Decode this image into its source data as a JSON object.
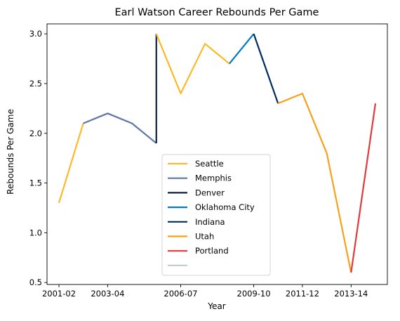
{
  "chart_data": {
    "type": "line",
    "title": "Earl Watson Career Rebounds Per Game",
    "xlabel": "Year",
    "ylabel": "Rebounds Per Game",
    "ylim": [
      0.48,
      3.1
    ],
    "x_categories": [
      "2001-02",
      "2002-03",
      "2003-04",
      "2004-05",
      "2005-06",
      "2006-07",
      "2007-08",
      "2008-09",
      "2009-10",
      "2010-11",
      "2011-12",
      "2012-13",
      "2013-14",
      "2014-15"
    ],
    "xticks": [
      "2001-02",
      "2003-04",
      "2006-07",
      "2009-10",
      "2011-12",
      "2013-14"
    ],
    "yticks": [
      "0.5",
      "1.0",
      "1.5",
      "2.0",
      "2.5",
      "3.0"
    ],
    "grid": false,
    "legend": "lower-center",
    "series": [
      {
        "name": "Seattle",
        "color": "#FDB927",
        "points": [
          [
            0,
            1.3
          ],
          [
            1,
            2.1
          ]
        ]
      },
      {
        "name": "Memphis",
        "color": "#5D76A9",
        "points": [
          [
            1,
            2.1
          ],
          [
            2,
            2.2
          ],
          [
            3,
            2.1
          ],
          [
            4,
            1.9
          ]
        ]
      },
      {
        "name": "Denver",
        "color": "#0E2240",
        "points": [
          [
            4,
            1.9
          ],
          [
            4,
            3.0
          ]
        ]
      },
      {
        "name": "Seattle",
        "color": "#FDB927",
        "points": [
          [
            4,
            3.0
          ],
          [
            5,
            2.4
          ],
          [
            6,
            2.9
          ],
          [
            7,
            2.7
          ]
        ],
        "legend": false
      },
      {
        "name": "Oklahoma City",
        "color": "#007AC1",
        "points": [
          [
            7,
            2.7
          ],
          [
            8,
            3.0
          ]
        ]
      },
      {
        "name": "Indiana",
        "color": "#002D62",
        "points": [
          [
            8,
            3.0
          ],
          [
            9,
            2.3
          ]
        ]
      },
      {
        "name": "Utah",
        "color": "#F9A01B",
        "points": [
          [
            9,
            2.3
          ],
          [
            10,
            2.4
          ],
          [
            11,
            1.8
          ],
          [
            12,
            0.6
          ]
        ]
      },
      {
        "name": "Portland",
        "color": "#E03A3E",
        "points": [
          [
            12,
            0.6
          ],
          [
            13,
            2.3
          ]
        ]
      }
    ],
    "legend_entries": [
      {
        "label": "Seattle",
        "color": "#FDB927"
      },
      {
        "label": "Memphis",
        "color": "#5D76A9"
      },
      {
        "label": "Denver",
        "color": "#0E2240"
      },
      {
        "label": "Oklahoma City",
        "color": "#007AC1"
      },
      {
        "label": "Indiana",
        "color": "#002D62"
      },
      {
        "label": "Utah",
        "color": "#F9A01B"
      },
      {
        "label": "Portland",
        "color": "#E03A3E"
      },
      {
        "label": "",
        "color": "#C4CED4"
      }
    ]
  }
}
